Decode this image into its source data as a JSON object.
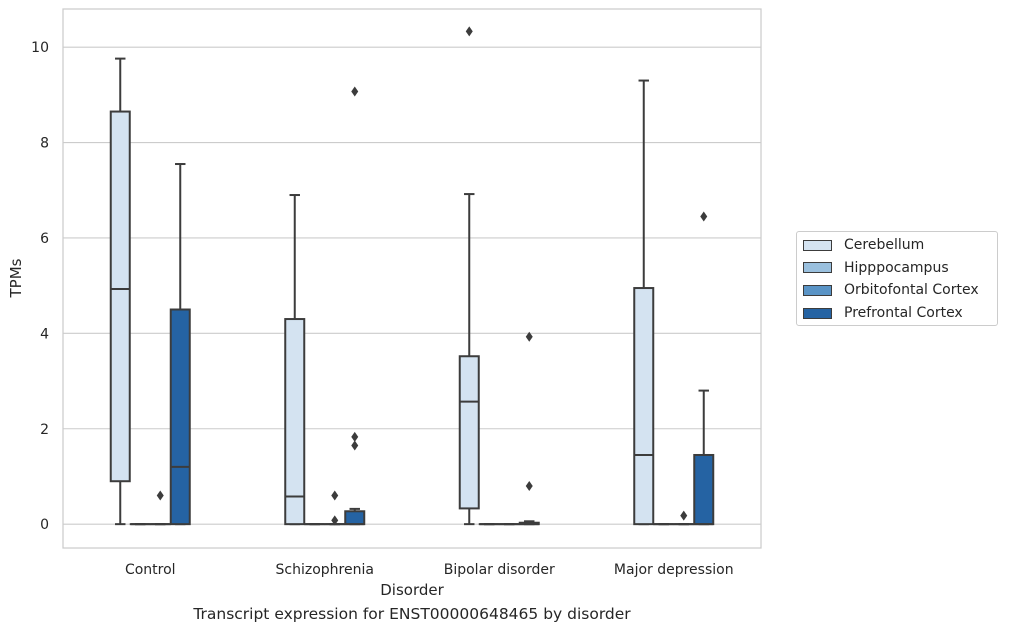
{
  "caption": "Transcript expression for ENST00000648465 by disorder",
  "colors": {
    "Cerebellum": "#d4e3f1",
    "Hipppocampus": "#9ac0de",
    "Orbitofontal Cortex": "#5a94c6",
    "Prefrontal Cortex": "#2563a3",
    "grid": "#cccccc",
    "line": "#3c3c3c"
  },
  "chart_data": {
    "type": "box",
    "xlabel": "Disorder",
    "ylabel": "TPMs",
    "categories": [
      "Control",
      "Schizophrenia",
      "Bipolar disorder",
      "Major depression"
    ],
    "ylim": [
      -0.5,
      10.8
    ],
    "yticks": [
      0,
      2,
      4,
      6,
      8,
      10
    ],
    "grid": "horizontal",
    "legend_position": "right",
    "series": [
      {
        "name": "Cerebellum",
        "boxes": [
          {
            "whislo": 0,
            "q1": 0.9,
            "med": 4.93,
            "q3": 8.65,
            "whishi": 9.76,
            "fliers": []
          },
          {
            "whislo": 0,
            "q1": 0,
            "med": 0.58,
            "q3": 4.3,
            "whishi": 6.9,
            "fliers": []
          },
          {
            "whislo": 0,
            "q1": 0.33,
            "med": 2.57,
            "q3": 3.52,
            "whishi": 6.92,
            "fliers": [
              10.33
            ]
          },
          {
            "whislo": 0,
            "q1": 0,
            "med": 1.45,
            "q3": 4.95,
            "whishi": 9.3,
            "fliers": []
          }
        ]
      },
      {
        "name": "Hipppocampus",
        "boxes": [
          {
            "whislo": 0,
            "q1": 0,
            "med": 0,
            "q3": 0,
            "whishi": 0,
            "fliers": []
          },
          {
            "whislo": 0,
            "q1": 0,
            "med": 0,
            "q3": 0,
            "whishi": 0,
            "fliers": []
          },
          {
            "whislo": 0,
            "q1": 0,
            "med": 0,
            "q3": 0,
            "whishi": 0,
            "fliers": []
          },
          {
            "whislo": 0,
            "q1": 0,
            "med": 0,
            "q3": 0,
            "whishi": 0,
            "fliers": []
          }
        ]
      },
      {
        "name": "Orbitofontal Cortex",
        "boxes": [
          {
            "whislo": 0,
            "q1": 0,
            "med": 0,
            "q3": 0,
            "whishi": 0,
            "fliers": [
              0.6
            ]
          },
          {
            "whislo": 0,
            "q1": 0,
            "med": 0,
            "q3": 0,
            "whishi": 0,
            "fliers": [
              0.08,
              0.6
            ]
          },
          {
            "whislo": 0,
            "q1": 0,
            "med": 0,
            "q3": 0,
            "whishi": 0,
            "fliers": []
          },
          {
            "whislo": 0,
            "q1": 0,
            "med": 0,
            "q3": 0,
            "whishi": 0,
            "fliers": [
              0.18
            ]
          }
        ]
      },
      {
        "name": "Prefrontal Cortex",
        "boxes": [
          {
            "whislo": 0,
            "q1": 0,
            "med": 1.2,
            "q3": 4.5,
            "whishi": 7.55,
            "fliers": []
          },
          {
            "whislo": 0,
            "q1": 0,
            "med": 0,
            "q3": 0.27,
            "whishi": 0.32,
            "fliers": [
              1.65,
              1.83,
              9.07
            ]
          },
          {
            "whislo": 0,
            "q1": 0,
            "med": 0,
            "q3": 0.03,
            "whishi": 0.06,
            "fliers": [
              0.8,
              3.93
            ]
          },
          {
            "whislo": 0,
            "q1": 0,
            "med": 0,
            "q3": 1.45,
            "whishi": 2.8,
            "fliers": [
              6.45
            ]
          }
        ]
      }
    ]
  }
}
